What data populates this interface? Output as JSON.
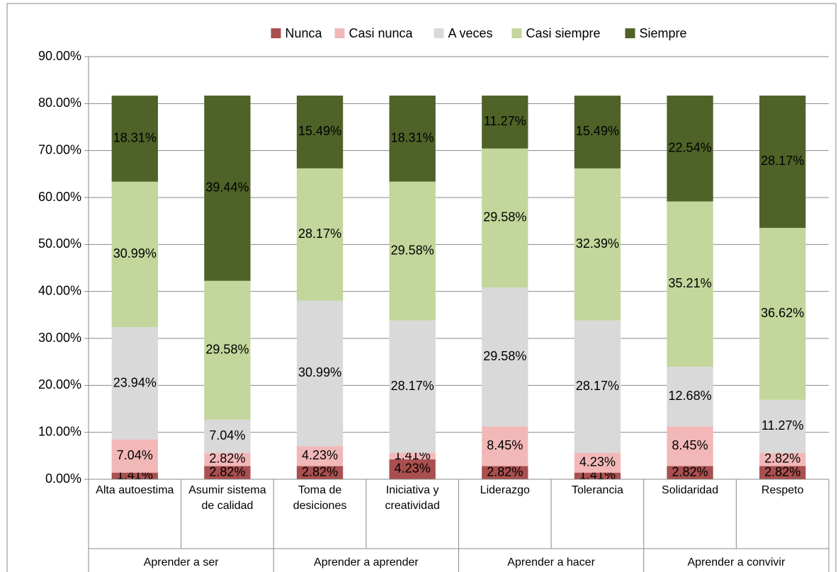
{
  "chart_data": {
    "type": "stacked_bar",
    "categories": [
      "Alta autoestima",
      "Asumir sistema de calidad",
      "Toma de desiciones",
      "Iniciativa y creatividad",
      "Liderazgo",
      "Tolerancia",
      "Solidaridad",
      "Respeto"
    ],
    "groups": [
      {
        "label": "Aprender a ser",
        "span": 2
      },
      {
        "label": "Aprender a aprender",
        "span": 2
      },
      {
        "label": "Aprender a hacer",
        "span": 2
      },
      {
        "label": "Aprender a convivir",
        "span": 2
      }
    ],
    "series": [
      {
        "name": "Nunca",
        "color": "#a94f4f",
        "values": [
          1.41,
          2.82,
          2.82,
          4.23,
          2.82,
          1.41,
          2.82,
          2.82
        ],
        "value_labels": [
          "1.41%",
          "2.82%",
          "2.82%",
          "4.23%",
          "2.82%",
          "1.41%",
          "2.82%",
          "2.82%"
        ]
      },
      {
        "name": "Casi nunca",
        "color": "#f2b8b8",
        "values": [
          7.04,
          2.82,
          4.23,
          1.41,
          8.45,
          4.23,
          8.45,
          2.82
        ],
        "value_labels": [
          "7.04%",
          "2.82%",
          "4.23%",
          "1.41%",
          "8.45%",
          "4.23%",
          "8.45%",
          "2.82%"
        ]
      },
      {
        "name": "A veces",
        "color": "#d9d9d9",
        "values": [
          23.94,
          7.04,
          30.99,
          28.17,
          29.58,
          28.17,
          12.68,
          11.27
        ],
        "value_labels": [
          "23.94%",
          "7.04%",
          "30.99%",
          "28.17%",
          "29.58%",
          "28.17%",
          "12.68%",
          "11.27%"
        ]
      },
      {
        "name": "Casi siempre",
        "color": "#c3d69b",
        "values": [
          30.99,
          29.58,
          28.17,
          29.58,
          29.58,
          32.39,
          35.21,
          36.62
        ],
        "value_labels": [
          "30.99%",
          "29.58%",
          "28.17%",
          "29.58%",
          "29.58%",
          "32.39%",
          "35.21%",
          "36.62%"
        ]
      },
      {
        "name": "Siempre",
        "color": "#4f6228",
        "values": [
          18.31,
          39.44,
          15.49,
          18.31,
          11.27,
          15.49,
          22.54,
          28.17
        ],
        "value_labels": [
          "18.31%",
          "39.44%",
          "15.49%",
          "18.31%",
          "11.27%",
          "15.49%",
          "22.54%",
          "28.17%"
        ]
      }
    ],
    "ylim": [
      0,
      90
    ],
    "yticks": [
      {
        "value": 0,
        "label": "0.00%"
      },
      {
        "value": 10,
        "label": "10.00%"
      },
      {
        "value": 20,
        "label": "20.00%"
      },
      {
        "value": 30,
        "label": "30.00%"
      },
      {
        "value": 40,
        "label": "40.00%"
      },
      {
        "value": 50,
        "label": "50.00%"
      },
      {
        "value": 60,
        "label": "60.00%"
      },
      {
        "value": 70,
        "label": "70.00%"
      },
      {
        "value": 80,
        "label": "80.00%"
      },
      {
        "value": 90,
        "label": "90.00%"
      }
    ],
    "grid": true,
    "legend": "top"
  }
}
